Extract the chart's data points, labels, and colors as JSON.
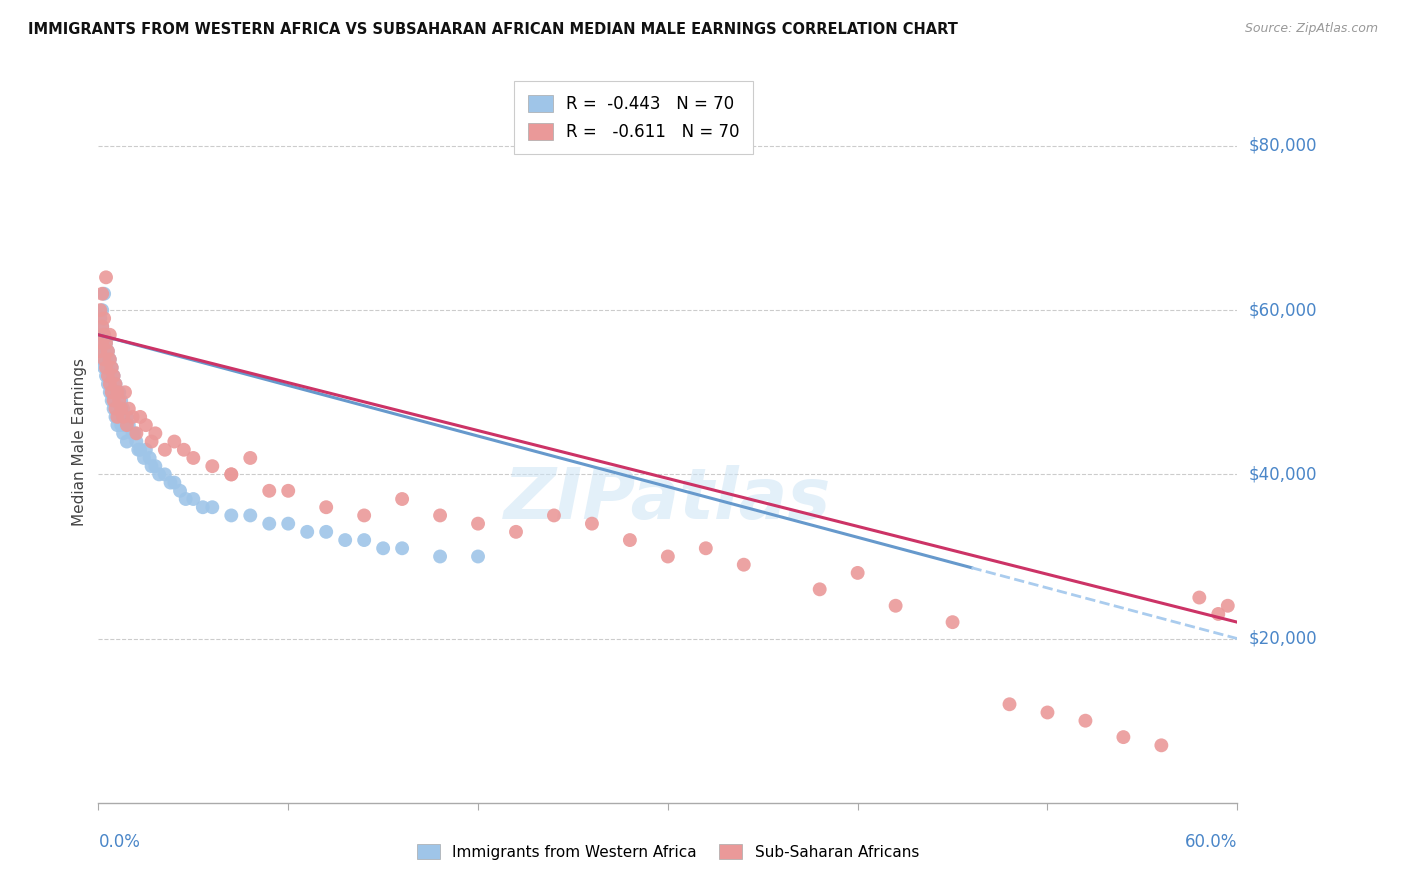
{
  "title": "IMMIGRANTS FROM WESTERN AFRICA VS SUBSAHARAN AFRICAN MEDIAN MALE EARNINGS CORRELATION CHART",
  "source": "Source: ZipAtlas.com",
  "ylabel": "Median Male Earnings",
  "color_blue": "#9fc5e8",
  "color_pink": "#ea9999",
  "color_blue_line": "#6699cc",
  "color_pink_line": "#cc3366",
  "color_blue_dashed": "#aaccee",
  "color_axis_blue": "#4a86c8",
  "watermark": "ZIPatlas",
  "legend1_r": "-0.443",
  "legend1_n": "70",
  "legend2_r": "-0.611",
  "legend2_n": "70",
  "ylim": [
    0,
    88000
  ],
  "xlim": [
    0.0,
    0.6
  ],
  "blue_x": [
    0.001,
    0.001,
    0.001,
    0.002,
    0.002,
    0.002,
    0.002,
    0.003,
    0.003,
    0.003,
    0.003,
    0.004,
    0.004,
    0.004,
    0.005,
    0.005,
    0.005,
    0.006,
    0.006,
    0.006,
    0.007,
    0.007,
    0.008,
    0.008,
    0.008,
    0.009,
    0.009,
    0.01,
    0.01,
    0.011,
    0.011,
    0.012,
    0.012,
    0.013,
    0.013,
    0.014,
    0.015,
    0.015,
    0.016,
    0.018,
    0.019,
    0.02,
    0.021,
    0.022,
    0.024,
    0.025,
    0.027,
    0.028,
    0.03,
    0.032,
    0.035,
    0.038,
    0.04,
    0.043,
    0.046,
    0.05,
    0.055,
    0.06,
    0.07,
    0.08,
    0.09,
    0.1,
    0.11,
    0.12,
    0.13,
    0.14,
    0.15,
    0.16,
    0.18,
    0.2
  ],
  "blue_y": [
    55000,
    57000,
    59000,
    54000,
    56000,
    58000,
    60000,
    53000,
    55000,
    57000,
    62000,
    52000,
    54000,
    56000,
    51000,
    53000,
    55000,
    50000,
    52000,
    54000,
    49000,
    53000,
    48000,
    50000,
    52000,
    47000,
    51000,
    46000,
    50000,
    47000,
    50000,
    46000,
    49000,
    45000,
    48000,
    46000,
    44000,
    47000,
    46000,
    45000,
    45000,
    44000,
    43000,
    43000,
    42000,
    43000,
    42000,
    41000,
    41000,
    40000,
    40000,
    39000,
    39000,
    38000,
    37000,
    37000,
    36000,
    36000,
    35000,
    35000,
    34000,
    34000,
    33000,
    33000,
    32000,
    32000,
    31000,
    31000,
    30000,
    30000
  ],
  "pink_x": [
    0.001,
    0.001,
    0.002,
    0.002,
    0.002,
    0.003,
    0.003,
    0.003,
    0.004,
    0.004,
    0.004,
    0.005,
    0.005,
    0.006,
    0.006,
    0.006,
    0.007,
    0.007,
    0.008,
    0.008,
    0.009,
    0.009,
    0.01,
    0.01,
    0.011,
    0.012,
    0.013,
    0.014,
    0.015,
    0.016,
    0.018,
    0.02,
    0.022,
    0.025,
    0.028,
    0.03,
    0.035,
    0.04,
    0.045,
    0.05,
    0.06,
    0.07,
    0.08,
    0.1,
    0.12,
    0.14,
    0.16,
    0.18,
    0.2,
    0.22,
    0.24,
    0.26,
    0.28,
    0.3,
    0.32,
    0.34,
    0.38,
    0.4,
    0.42,
    0.45,
    0.48,
    0.5,
    0.52,
    0.54,
    0.56,
    0.58,
    0.59,
    0.595,
    0.07,
    0.09
  ],
  "pink_y": [
    55000,
    60000,
    56000,
    58000,
    62000,
    54000,
    57000,
    59000,
    53000,
    56000,
    64000,
    52000,
    55000,
    51000,
    54000,
    57000,
    50000,
    53000,
    49000,
    52000,
    48000,
    51000,
    47000,
    50000,
    49000,
    48000,
    47000,
    50000,
    46000,
    48000,
    47000,
    45000,
    47000,
    46000,
    44000,
    45000,
    43000,
    44000,
    43000,
    42000,
    41000,
    40000,
    42000,
    38000,
    36000,
    35000,
    37000,
    35000,
    34000,
    33000,
    35000,
    34000,
    32000,
    30000,
    31000,
    29000,
    26000,
    28000,
    24000,
    22000,
    12000,
    11000,
    10000,
    8000,
    7000,
    25000,
    23000,
    24000,
    40000,
    38000
  ]
}
